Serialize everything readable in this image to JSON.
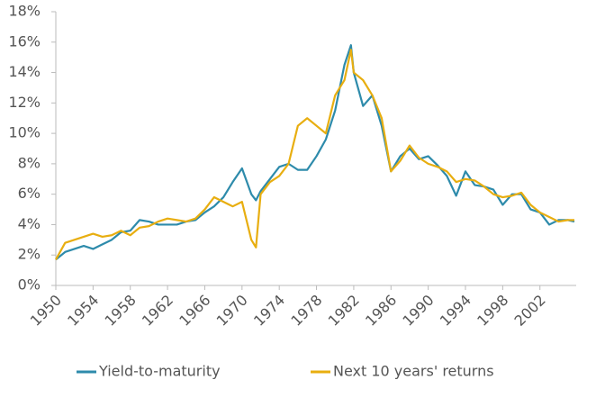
{
  "chart_data": {
    "type": "line",
    "x": [
      1950,
      1951,
      1952,
      1953,
      1954,
      1955,
      1956,
      1957,
      1958,
      1959,
      1960,
      1961,
      1962,
      1963,
      1964,
      1965,
      1966,
      1967,
      1968,
      1969,
      1970,
      1971,
      1971.5,
      1972,
      1973,
      1974,
      1975,
      1976,
      1977,
      1978,
      1979,
      1980,
      1981,
      1981.7,
      1982,
      1983,
      1984,
      1985,
      1986,
      1987,
      1988,
      1989,
      1990,
      1991,
      1992,
      1993,
      1994,
      1995,
      1996,
      1997,
      1998,
      1999,
      2000,
      2001,
      2002,
      2003,
      2004,
      2005,
      2005.7
    ],
    "series": [
      {
        "name": "Yield-to-maturity",
        "color": "#2e8bab",
        "values": [
          1.7,
          2.2,
          2.4,
          2.6,
          2.4,
          2.7,
          3.0,
          3.5,
          3.6,
          4.3,
          4.2,
          4.0,
          4.0,
          4.0,
          4.2,
          4.3,
          4.8,
          5.2,
          5.8,
          6.8,
          7.7,
          6.0,
          5.6,
          6.2,
          7.0,
          7.8,
          8.0,
          7.6,
          7.6,
          8.5,
          9.6,
          11.5,
          14.5,
          15.8,
          14.0,
          11.8,
          12.5,
          10.5,
          7.5,
          8.5,
          9.0,
          8.3,
          8.5,
          7.9,
          7.2,
          5.9,
          7.5,
          6.6,
          6.5,
          6.3,
          5.3,
          6.0,
          6.0,
          5.0,
          4.8,
          4.0,
          4.3,
          4.3,
          4.2
        ]
      },
      {
        "name": "Next 10 years' returns",
        "color": "#e8ae10",
        "values": [
          1.7,
          2.8,
          3.0,
          3.2,
          3.4,
          3.2,
          3.3,
          3.6,
          3.3,
          3.8,
          3.9,
          4.2,
          4.4,
          4.3,
          4.2,
          4.4,
          5.0,
          5.8,
          5.5,
          5.2,
          5.5,
          3.0,
          2.5,
          6.0,
          6.8,
          7.2,
          8.0,
          10.5,
          11.0,
          10.5,
          10.0,
          12.5,
          13.5,
          15.5,
          14.0,
          13.5,
          12.5,
          11.0,
          7.5,
          8.2,
          9.2,
          8.4,
          8.0,
          7.8,
          7.5,
          6.8,
          7.0,
          6.9,
          6.5,
          6.0,
          5.8,
          5.9,
          6.1,
          5.3,
          4.8,
          4.5,
          4.2,
          4.3,
          4.3
        ]
      }
    ],
    "xlim": [
      1950,
      2005.7
    ],
    "xticks": [
      1950,
      1954,
      1958,
      1962,
      1966,
      1970,
      1974,
      1978,
      1982,
      1986,
      1990,
      1994,
      1998,
      2002
    ],
    "ylim": [
      0,
      18
    ],
    "yticks": [
      {
        "value": 0,
        "label": "0%"
      },
      {
        "value": 2,
        "label": "2%"
      },
      {
        "value": 4,
        "label": "4%"
      },
      {
        "value": 6,
        "label": "6%"
      },
      {
        "value": 8,
        "label": "8%"
      },
      {
        "value": 10,
        "label": "10%"
      },
      {
        "value": 12,
        "label": "12%"
      },
      {
        "value": 14,
        "label": "14%"
      },
      {
        "value": 16,
        "label": "16%"
      },
      {
        "value": 18,
        "label": "18%"
      }
    ],
    "grid": false,
    "legend": "bottom"
  }
}
